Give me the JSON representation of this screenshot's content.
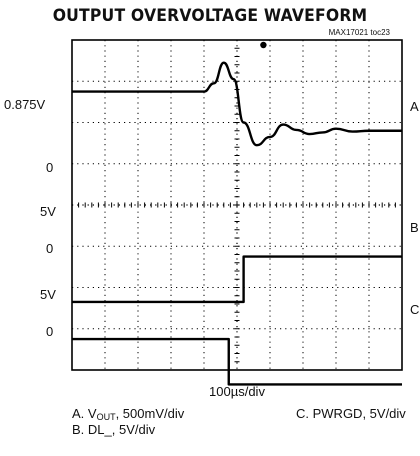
{
  "chart_data": {
    "type": "line",
    "title": "OUTPUT OVERVOLTAGE WAVEFORM",
    "doc_id": "MAX17021 toc23",
    "xlabel": "100µs/div",
    "grid": true,
    "divisions": {
      "x": 10,
      "y": 8
    },
    "channel_labels": {
      "A": {
        "label": "0.875V",
        "zero": "0"
      },
      "B": {
        "label": "5V",
        "zero": "0"
      },
      "C": {
        "label": "5V",
        "zero": "0"
      }
    },
    "series": [
      {
        "name": "A",
        "unit_per_div": 0.5,
        "x": [
          0,
          4.0,
          4.3,
          4.6,
          4.9,
          5.2,
          5.6,
          6.0,
          6.4,
          6.8,
          7.2,
          7.6,
          8.0,
          8.5,
          9.0,
          10.0
        ],
        "y": [
          2.65,
          2.65,
          2.85,
          3.35,
          2.95,
          1.9,
          1.35,
          1.55,
          1.85,
          1.72,
          1.62,
          1.66,
          1.75,
          1.68,
          1.7,
          1.7
        ]
      },
      {
        "name": "B",
        "unit_per_div": 5,
        "x": [
          0,
          5.2,
          5.2,
          10.0
        ],
        "y": [
          0,
          0,
          1.0,
          1.0
        ]
      },
      {
        "name": "C",
        "unit_per_div": 5,
        "x": [
          0,
          4.75,
          4.75,
          10.0
        ],
        "y": [
          1.0,
          1.0,
          0,
          0
        ]
      }
    ],
    "legend": {
      "a_prefix": "A. V",
      "a_sub": "OUT",
      "a_suffix": ", 500mV/div",
      "b": "B. DL_, 5V/div",
      "c": "C. PWRGD, 5V/div"
    }
  }
}
